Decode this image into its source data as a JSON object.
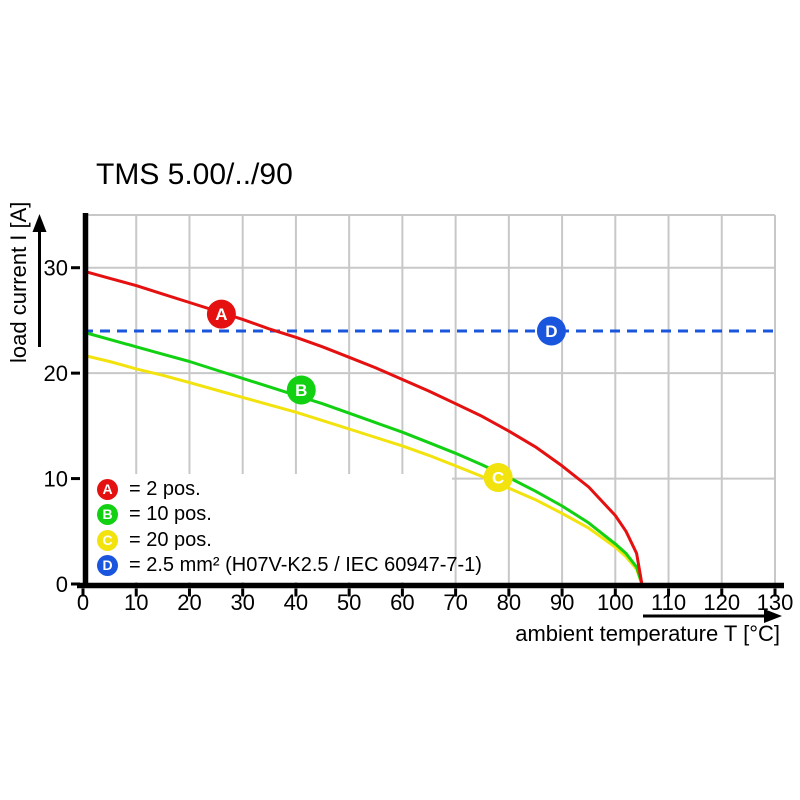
{
  "page": {
    "background": "#ffffff"
  },
  "chart_data": {
    "type": "line",
    "title": "TMS 5.00/../90",
    "xlabel": "ambient temperature T [°C]",
    "ylabel": "load current I [A]",
    "xlim": [
      0,
      130
    ],
    "ylim": [
      0,
      35
    ],
    "xticks": [
      0,
      10,
      20,
      30,
      40,
      50,
      60,
      70,
      80,
      90,
      100,
      110,
      120,
      130
    ],
    "yticks": [
      0,
      10,
      20,
      30
    ],
    "grid": true,
    "legend_position": "inside-bottom-left",
    "axis_colors": {
      "axis": "#000000",
      "grid": "#c8c8c8",
      "tick_label": "#000000"
    },
    "series": [
      {
        "id": "A",
        "label": "2 pos.",
        "color": "#e51010",
        "line_style": "solid",
        "points": [
          [
            0,
            29.7
          ],
          [
            5,
            29.0
          ],
          [
            10,
            28.3
          ],
          [
            15,
            27.5
          ],
          [
            20,
            26.7
          ],
          [
            25,
            25.9
          ],
          [
            30,
            25.1
          ],
          [
            35,
            24.2
          ],
          [
            40,
            23.4
          ],
          [
            45,
            22.5
          ],
          [
            50,
            21.5
          ],
          [
            55,
            20.5
          ],
          [
            60,
            19.4
          ],
          [
            65,
            18.3
          ],
          [
            70,
            17.1
          ],
          [
            75,
            15.9
          ],
          [
            80,
            14.5
          ],
          [
            85,
            13.0
          ],
          [
            90,
            11.2
          ],
          [
            95,
            9.2
          ],
          [
            100,
            6.5
          ],
          [
            102,
            5.0
          ],
          [
            104,
            2.9
          ],
          [
            105,
            0
          ]
        ]
      },
      {
        "id": "B",
        "label": "10 pos.",
        "color": "#12d112",
        "line_style": "solid",
        "points": [
          [
            0,
            23.9
          ],
          [
            5,
            23.2
          ],
          [
            10,
            22.5
          ],
          [
            15,
            21.8
          ],
          [
            20,
            21.1
          ],
          [
            25,
            20.3
          ],
          [
            30,
            19.5
          ],
          [
            35,
            18.7
          ],
          [
            40,
            17.9
          ],
          [
            45,
            17.1
          ],
          [
            50,
            16.2
          ],
          [
            55,
            15.3
          ],
          [
            60,
            14.4
          ],
          [
            65,
            13.4
          ],
          [
            70,
            12.4
          ],
          [
            75,
            11.3
          ],
          [
            80,
            10.1
          ],
          [
            85,
            8.8
          ],
          [
            90,
            7.4
          ],
          [
            95,
            5.8
          ],
          [
            100,
            3.8
          ],
          [
            102,
            2.9
          ],
          [
            104,
            1.6
          ],
          [
            105,
            0
          ]
        ]
      },
      {
        "id": "C",
        "label": "20 pos.",
        "color": "#f2e20d",
        "line_style": "solid",
        "points": [
          [
            0,
            21.7
          ],
          [
            5,
            21.1
          ],
          [
            10,
            20.4
          ],
          [
            15,
            19.8
          ],
          [
            20,
            19.1
          ],
          [
            25,
            18.4
          ],
          [
            30,
            17.7
          ],
          [
            35,
            17.0
          ],
          [
            40,
            16.3
          ],
          [
            45,
            15.5
          ],
          [
            50,
            14.7
          ],
          [
            55,
            13.9
          ],
          [
            60,
            13.1
          ],
          [
            65,
            12.2
          ],
          [
            70,
            11.2
          ],
          [
            75,
            10.2
          ],
          [
            80,
            9.1
          ],
          [
            85,
            8.0
          ],
          [
            90,
            6.7
          ],
          [
            95,
            5.3
          ],
          [
            100,
            3.5
          ],
          [
            102,
            2.6
          ],
          [
            104,
            1.4
          ],
          [
            105,
            0
          ]
        ]
      },
      {
        "id": "D",
        "label": "2.5 mm² (H07V-K2.5 / IEC 60947-7-1)",
        "color": "#1a56dd",
        "line_style": "dashed",
        "points": [
          [
            0,
            24
          ],
          [
            130,
            24
          ]
        ]
      }
    ],
    "markers": [
      {
        "letter": "A",
        "series": "A",
        "x": 26,
        "y": 25.6,
        "color": "#e51010"
      },
      {
        "letter": "B",
        "series": "B",
        "x": 41,
        "y": 18.4,
        "color": "#12d112"
      },
      {
        "letter": "C",
        "series": "C",
        "x": 78,
        "y": 10.1,
        "color": "#f2e20d"
      },
      {
        "letter": "D",
        "series": "D",
        "x": 88,
        "y": 24.0,
        "color": "#1a56dd"
      }
    ],
    "legend": {
      "items": [
        {
          "letter": "A",
          "label": "= 2 pos.",
          "color": "#e51010"
        },
        {
          "letter": "B",
          "label": "= 10 pos.",
          "color": "#12d112"
        },
        {
          "letter": "C",
          "label": "= 20 pos.",
          "color": "#f2e20d"
        },
        {
          "letter": "D",
          "label": "= 2.5 mm² (H07V-K2.5 / IEC 60947-7-1)",
          "color": "#1a56dd"
        }
      ]
    }
  }
}
